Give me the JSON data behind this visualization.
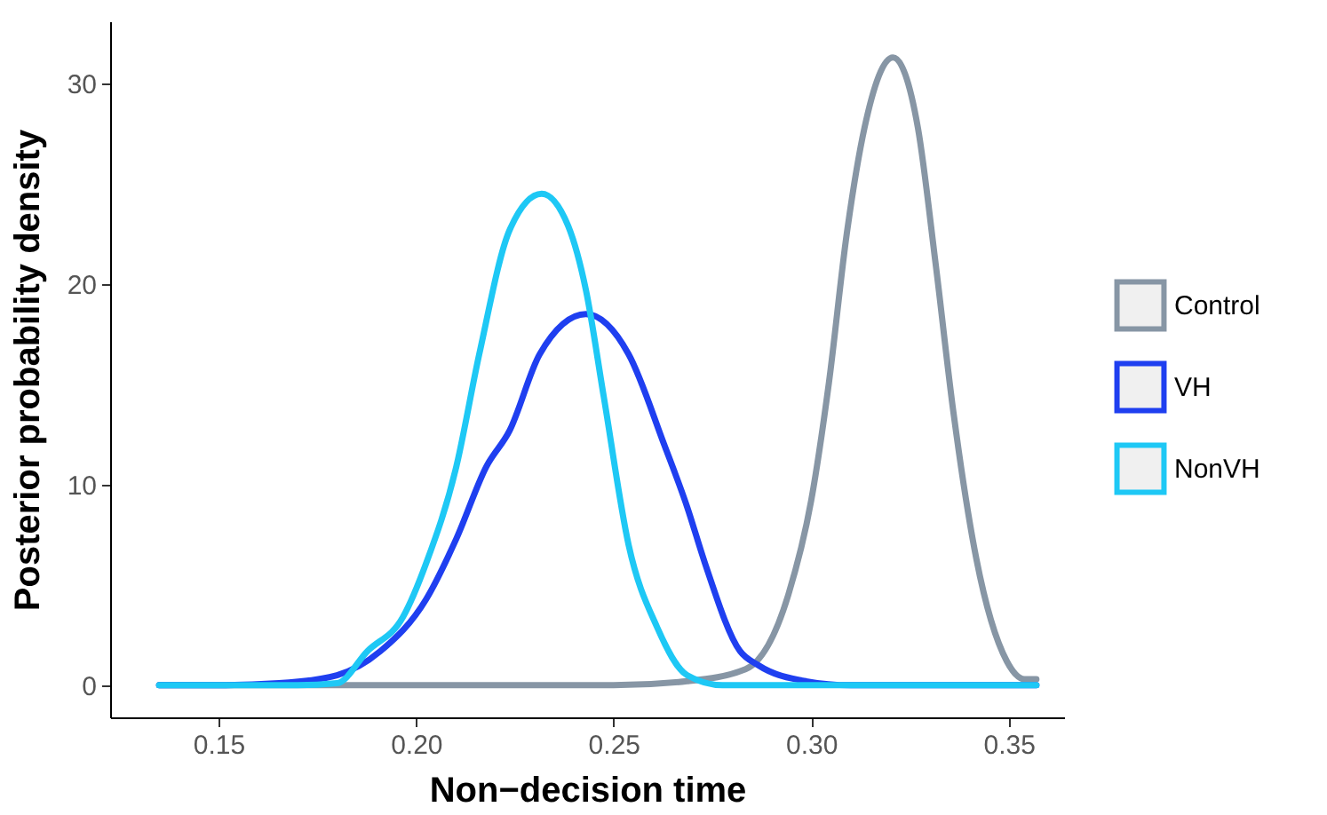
{
  "chart_data": {
    "type": "line",
    "xlabel": "Non−decision time",
    "ylabel": "Posterior probability density",
    "xlim": [
      0.1226,
      0.364
    ],
    "ylim": [
      -1.6,
      33.1
    ],
    "xticks": [
      {
        "value": 0.15,
        "label": "0.15"
      },
      {
        "value": 0.2,
        "label": "0.20"
      },
      {
        "value": 0.25,
        "label": "0.25"
      },
      {
        "value": 0.3,
        "label": "0.30"
      },
      {
        "value": 0.35,
        "label": "0.35"
      }
    ],
    "yticks": [
      0,
      10,
      20,
      30
    ],
    "grid": false,
    "legend": "right",
    "line_style": "solid",
    "marker": "none",
    "series": [
      {
        "name": "Control",
        "color": "#8796a5",
        "x": [
          0.135,
          0.25,
          0.2686,
          0.2834,
          0.2942,
          0.3,
          0.3045,
          0.309,
          0.3135,
          0.3207,
          0.327,
          0.3315,
          0.336,
          0.3418,
          0.3495,
          0.354,
          0.357
        ],
        "values": [
          0,
          0,
          0.2,
          0.8,
          4.5,
          9.2,
          15.1,
          22.5,
          27.8,
          31.3,
          27.8,
          21,
          13.6,
          6.3,
          1.2,
          0.3,
          0.3
        ]
      },
      {
        "name": "VH",
        "color": "#1f3ff0",
        "x": [
          0.135,
          0.15,
          0.1653,
          0.18,
          0.191,
          0.2026,
          0.2102,
          0.2178,
          0.2237,
          0.2313,
          0.243,
          0.2538,
          0.2628,
          0.2686,
          0.2731,
          0.282,
          0.2866,
          0.2987,
          0.31,
          0.357
        ],
        "values": [
          0,
          0,
          0.1,
          0.5,
          1.7,
          4.3,
          7.3,
          10.9,
          12.7,
          16.5,
          18.5,
          16.5,
          12.0,
          8.9,
          6.1,
          1.7,
          1.0,
          0.2,
          0,
          0
        ]
      },
      {
        "name": "NonVH",
        "color": "#1ec8f5",
        "x": [
          0.135,
          0.17,
          0.18,
          0.1877,
          0.1967,
          0.2026,
          0.2102,
          0.216,
          0.2237,
          0.2318,
          0.2385,
          0.243,
          0.2475,
          0.2538,
          0.261,
          0.2686,
          0.2776,
          0.357
        ],
        "values": [
          0,
          0,
          0.1,
          1.7,
          3.4,
          6.1,
          10.9,
          16.5,
          22.7,
          24.5,
          22.9,
          19.7,
          14.4,
          7.0,
          2.9,
          0.5,
          0,
          0
        ]
      }
    ]
  }
}
